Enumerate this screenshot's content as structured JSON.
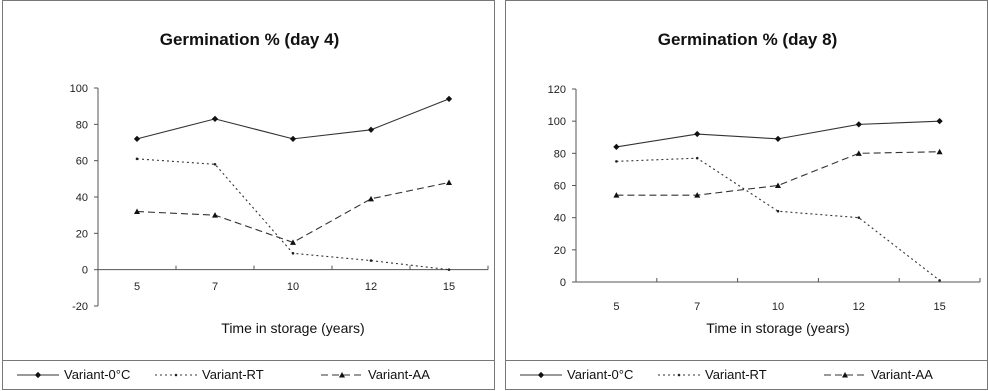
{
  "chart_data": [
    {
      "type": "line",
      "title": "Germination % (day 4)",
      "xlabel": "Time in storage (years)",
      "ylabel": "",
      "categories": [
        "5",
        "7",
        "10",
        "12",
        "15"
      ],
      "ylim": [
        -20,
        100
      ],
      "yticks": [
        100,
        80,
        60,
        40,
        20,
        0,
        -20
      ],
      "grid": false,
      "legend_position": "bottom",
      "series": [
        {
          "name": "Variant-0°C",
          "style": "solid",
          "marker": "diamond",
          "values": [
            72,
            83,
            72,
            77,
            94
          ]
        },
        {
          "name": "Variant-RT",
          "style": "dotted",
          "marker": "small-dot",
          "values": [
            61,
            58,
            9,
            5,
            0
          ]
        },
        {
          "name": "Variant-AA",
          "style": "dashed",
          "marker": "triangle",
          "values": [
            32,
            30,
            15,
            39,
            48
          ]
        }
      ]
    },
    {
      "type": "line",
      "title": "Germination % (day 8)",
      "xlabel": "Time in storage (years)",
      "ylabel": "",
      "categories": [
        "5",
        "7",
        "10",
        "12",
        "15"
      ],
      "ylim": [
        0,
        120
      ],
      "yticks": [
        120,
        100,
        80,
        60,
        40,
        20,
        0
      ],
      "grid": false,
      "legend_position": "bottom",
      "series": [
        {
          "name": "Variant-0°C",
          "style": "solid",
          "marker": "diamond",
          "values": [
            84,
            92,
            89,
            98,
            100
          ]
        },
        {
          "name": "Variant-RT",
          "style": "dotted",
          "marker": "small-dot",
          "values": [
            75,
            77,
            44,
            40,
            1
          ]
        },
        {
          "name": "Variant-AA",
          "style": "dashed",
          "marker": "triangle",
          "values": [
            54,
            54,
            60,
            80,
            81
          ]
        }
      ]
    }
  ]
}
